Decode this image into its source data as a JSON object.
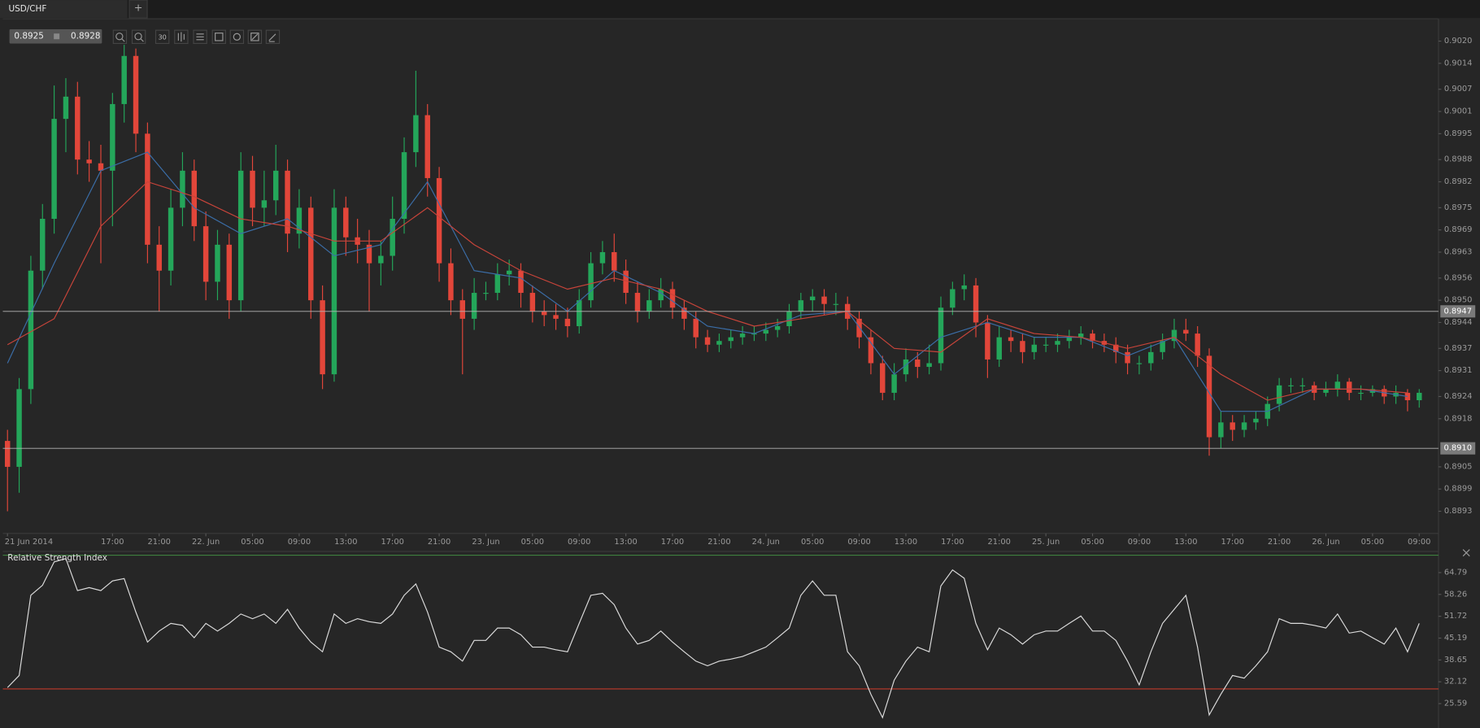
{
  "tabs": {
    "active": "USD/CHF",
    "add": "+"
  },
  "toolbar": {
    "bid": 0.8925,
    "ask": 0.8928,
    "timeframe": 30
  },
  "chart_data": [
    {
      "type": "candlestick",
      "up_color": "#24a65a",
      "down_color": "#e2463a",
      "xlim": [
        -0.4,
        122.65
      ],
      "ylim": [
        0.8887,
        0.9026
      ],
      "xticks": [
        {
          "value": 0,
          "label": "21 Jun 2014"
        },
        {
          "value": 9,
          "label": "17:00"
        },
        {
          "value": 13,
          "label": "21:00"
        },
        {
          "value": 17,
          "label": "22. Jun"
        },
        {
          "value": 21,
          "label": "05:00"
        },
        {
          "value": 25,
          "label": "09:00"
        },
        {
          "value": 29,
          "label": "13:00"
        },
        {
          "value": 33,
          "label": "17:00"
        },
        {
          "value": 37,
          "label": "21:00"
        },
        {
          "value": 41,
          "label": "23. Jun"
        },
        {
          "value": 45,
          "label": "05:00"
        },
        {
          "value": 49,
          "label": "09:00"
        },
        {
          "value": 53,
          "label": "13:00"
        },
        {
          "value": 57,
          "label": "17:00"
        },
        {
          "value": 61,
          "label": "21:00"
        },
        {
          "value": 65,
          "label": "24. Jun"
        },
        {
          "value": 69,
          "label": "05:00"
        },
        {
          "value": 73,
          "label": "09:00"
        },
        {
          "value": 77,
          "label": "13:00"
        },
        {
          "value": 81,
          "label": "17:00"
        },
        {
          "value": 85,
          "label": "21:00"
        },
        {
          "value": 89,
          "label": "25. Jun"
        },
        {
          "value": 93,
          "label": "05:00"
        },
        {
          "value": 97,
          "label": "09:00"
        },
        {
          "value": 101,
          "label": "13:00"
        },
        {
          "value": 105,
          "label": "17:00"
        },
        {
          "value": 109,
          "label": "21:00"
        },
        {
          "value": 113,
          "label": "26. Jun"
        },
        {
          "value": 117,
          "label": "05:00"
        },
        {
          "value": 121,
          "label": "09:00"
        }
      ],
      "yticks": [
        {
          "value": 0.902,
          "label": "0.9020"
        },
        0.9014,
        0.9007,
        0.9001,
        0.8995,
        0.8988,
        0.8982,
        0.8975,
        0.8969,
        0.8963,
        0.8956,
        {
          "value": 0.895,
          "label": "0.8950"
        },
        0.8944,
        0.8937,
        0.8931,
        0.8924,
        0.8918,
        0.8905,
        0.8899,
        0.8893
      ],
      "hlines": [
        0.8947,
        {
          "value": 0.891,
          "label": "0.8910"
        }
      ],
      "ohlc": [
        [
          0.8912,
          0.8915,
          0.8893,
          0.8905
        ],
        [
          0.8905,
          0.8929,
          0.8898,
          0.8926
        ],
        [
          0.8926,
          0.8962,
          0.8922,
          0.8958
        ],
        [
          0.8958,
          0.8976,
          0.8953,
          0.8972
        ],
        [
          0.8972,
          0.9008,
          0.8968,
          0.8999
        ],
        [
          0.8999,
          0.901,
          0.899,
          0.9005
        ],
        [
          0.9005,
          0.9009,
          0.8984,
          0.8988
        ],
        [
          0.8988,
          0.8993,
          0.8982,
          0.8987
        ],
        [
          0.8987,
          0.8992,
          0.896,
          0.8985
        ],
        [
          0.8985,
          0.9006,
          0.897,
          0.9003
        ],
        [
          0.9003,
          0.9019,
          0.8998,
          0.9016
        ],
        [
          0.9016,
          0.9018,
          0.899,
          0.8995
        ],
        [
          0.8995,
          0.8998,
          0.896,
          0.8965
        ],
        [
          0.8965,
          0.897,
          0.8947,
          0.8958
        ],
        [
          0.8958,
          0.898,
          0.8954,
          0.8975
        ],
        [
          0.8975,
          0.899,
          0.897,
          0.8985
        ],
        [
          0.8985,
          0.8988,
          0.8966,
          0.897
        ],
        [
          0.897,
          0.8974,
          0.895,
          0.8955
        ],
        [
          0.8955,
          0.8969,
          0.895,
          0.8965
        ],
        [
          0.8965,
          0.8968,
          0.8945,
          0.895
        ],
        [
          0.895,
          0.899,
          0.8947,
          0.8985
        ],
        [
          0.8985,
          0.8989,
          0.897,
          0.8975
        ],
        [
          0.8975,
          0.8985,
          0.897,
          0.8977
        ],
        [
          0.8977,
          0.8992,
          0.8973,
          0.8985
        ],
        [
          0.8985,
          0.8988,
          0.8963,
          0.8968
        ],
        [
          0.8968,
          0.898,
          0.8964,
          0.8975
        ],
        [
          0.8975,
          0.8978,
          0.8945,
          0.895
        ],
        [
          0.895,
          0.8954,
          0.8926,
          0.893
        ],
        [
          0.893,
          0.898,
          0.8928,
          0.8975
        ],
        [
          0.8975,
          0.8978,
          0.8962,
          0.8967
        ],
        [
          0.8967,
          0.8972,
          0.896,
          0.8965
        ],
        [
          0.8965,
          0.8969,
          0.8947,
          0.896
        ],
        [
          0.896,
          0.8966,
          0.8954,
          0.8962
        ],
        [
          0.8962,
          0.8978,
          0.8958,
          0.8972
        ],
        [
          0.8972,
          0.8994,
          0.8968,
          0.899
        ],
        [
          0.899,
          0.9012,
          0.8986,
          0.9
        ],
        [
          0.9,
          0.9003,
          0.8978,
          0.8983
        ],
        [
          0.8983,
          0.8986,
          0.8955,
          0.896
        ],
        [
          0.896,
          0.8964,
          0.8946,
          0.895
        ],
        [
          0.895,
          0.8953,
          0.893,
          0.8945
        ],
        [
          0.8945,
          0.8956,
          0.8942,
          0.8952
        ],
        [
          0.8952,
          0.8955,
          0.895,
          0.8952
        ],
        [
          0.8952,
          0.896,
          0.895,
          0.8957
        ],
        [
          0.8957,
          0.8961,
          0.8954,
          0.8958
        ],
        [
          0.8958,
          0.896,
          0.8948,
          0.8952
        ],
        [
          0.8952,
          0.8954,
          0.8944,
          0.8947
        ],
        [
          0.8947,
          0.895,
          0.8943,
          0.8946
        ],
        [
          0.8946,
          0.8949,
          0.8942,
          0.8945
        ],
        [
          0.8945,
          0.8948,
          0.894,
          0.8943
        ],
        [
          0.8943,
          0.8953,
          0.8941,
          0.895
        ],
        [
          0.895,
          0.8963,
          0.8948,
          0.896
        ],
        [
          0.896,
          0.8966,
          0.8957,
          0.8963
        ],
        [
          0.8963,
          0.8968,
          0.8955,
          0.8958
        ],
        [
          0.8958,
          0.8961,
          0.8949,
          0.8952
        ],
        [
          0.8952,
          0.8955,
          0.8944,
          0.8947
        ],
        [
          0.8947,
          0.8953,
          0.8945,
          0.895
        ],
        [
          0.895,
          0.8956,
          0.8948,
          0.8953
        ],
        [
          0.8953,
          0.8955,
          0.8945,
          0.8948
        ],
        [
          0.8948,
          0.895,
          0.8942,
          0.8945
        ],
        [
          0.8945,
          0.8947,
          0.8937,
          0.894
        ],
        [
          0.894,
          0.8942,
          0.8936,
          0.8938
        ],
        [
          0.8938,
          0.8941,
          0.8936,
          0.8939
        ],
        [
          0.8939,
          0.8942,
          0.8937,
          0.894
        ],
        [
          0.894,
          0.8943,
          0.8938,
          0.8941
        ],
        [
          0.8941,
          0.8943,
          0.8939,
          0.8941
        ],
        [
          0.8941,
          0.8944,
          0.8939,
          0.8942
        ],
        [
          0.8942,
          0.8945,
          0.894,
          0.8943
        ],
        [
          0.8943,
          0.8949,
          0.8941,
          0.8947
        ],
        [
          0.8947,
          0.8952,
          0.8945,
          0.895
        ],
        [
          0.895,
          0.8953,
          0.8947,
          0.8951
        ],
        [
          0.8951,
          0.8953,
          0.8946,
          0.8949
        ],
        [
          0.8949,
          0.8952,
          0.8946,
          0.8949
        ],
        [
          0.8949,
          0.8951,
          0.8942,
          0.8945
        ],
        [
          0.8945,
          0.8947,
          0.8937,
          0.894
        ],
        [
          0.894,
          0.8942,
          0.893,
          0.8933
        ],
        [
          0.8933,
          0.8935,
          0.8923,
          0.8925
        ],
        [
          0.8925,
          0.8933,
          0.8923,
          0.893
        ],
        [
          0.893,
          0.8937,
          0.8928,
          0.8934
        ],
        [
          0.8934,
          0.8936,
          0.8929,
          0.8932
        ],
        [
          0.8932,
          0.8938,
          0.893,
          0.8933
        ],
        [
          0.8933,
          0.8951,
          0.8931,
          0.8948
        ],
        [
          0.8948,
          0.8955,
          0.8946,
          0.8953
        ],
        [
          0.8953,
          0.8957,
          0.895,
          0.8954
        ],
        [
          0.8954,
          0.8956,
          0.894,
          0.8944
        ],
        [
          0.8944,
          0.8946,
          0.8929,
          0.8934
        ],
        [
          0.8934,
          0.8943,
          0.8932,
          0.894
        ],
        [
          0.894,
          0.8942,
          0.8936,
          0.8939
        ],
        [
          0.8939,
          0.8941,
          0.8933,
          0.8936
        ],
        [
          0.8936,
          0.894,
          0.8934,
          0.8938
        ],
        [
          0.8938,
          0.894,
          0.8936,
          0.8938
        ],
        [
          0.8938,
          0.8941,
          0.8936,
          0.8939
        ],
        [
          0.8939,
          0.8942,
          0.8937,
          0.894
        ],
        [
          0.894,
          0.8943,
          0.8938,
          0.8941
        ],
        [
          0.8941,
          0.8942,
          0.8937,
          0.8939
        ],
        [
          0.8939,
          0.8941,
          0.8936,
          0.8938
        ],
        [
          0.8938,
          0.894,
          0.8933,
          0.8936
        ],
        [
          0.8936,
          0.8938,
          0.893,
          0.8933
        ],
        [
          0.8933,
          0.8935,
          0.893,
          0.8933
        ],
        [
          0.8933,
          0.8938,
          0.8931,
          0.8936
        ],
        [
          0.8936,
          0.8941,
          0.8934,
          0.8939
        ],
        [
          0.8939,
          0.8945,
          0.8937,
          0.8942
        ],
        [
          0.8942,
          0.8945,
          0.8939,
          0.8941
        ],
        [
          0.8941,
          0.8943,
          0.8932,
          0.8935
        ],
        [
          0.8935,
          0.8937,
          0.8908,
          0.8913
        ],
        [
          0.8913,
          0.892,
          0.891,
          0.8917
        ],
        [
          0.8917,
          0.8919,
          0.8912,
          0.8915
        ],
        [
          0.8915,
          0.8919,
          0.8913,
          0.8917
        ],
        [
          0.8917,
          0.892,
          0.8915,
          0.8918
        ],
        [
          0.8918,
          0.8924,
          0.8916,
          0.8922
        ],
        [
          0.8922,
          0.8929,
          0.892,
          0.8927
        ],
        [
          0.8927,
          0.8929,
          0.8925,
          0.8927
        ],
        [
          0.8927,
          0.8929,
          0.8925,
          0.8927
        ],
        [
          0.8927,
          0.8928,
          0.8923,
          0.8925
        ],
        [
          0.8925,
          0.8928,
          0.8924,
          0.8926
        ],
        [
          0.8926,
          0.893,
          0.8924,
          0.8928
        ],
        [
          0.8928,
          0.8929,
          0.8923,
          0.8925
        ],
        [
          0.8925,
          0.8927,
          0.8923,
          0.8925
        ],
        [
          0.8925,
          0.8927,
          0.8924,
          0.8926
        ],
        [
          0.8926,
          0.8927,
          0.8922,
          0.8924
        ],
        [
          0.8924,
          0.8927,
          0.8922,
          0.8925
        ],
        [
          0.8925,
          0.8926,
          0.892,
          0.8923
        ],
        [
          0.8923,
          0.8926,
          0.8921,
          0.8925
        ]
      ],
      "series": [
        {
          "color": "#3b6ea8",
          "x": [
            0,
            4,
            8,
            12,
            16,
            20,
            24,
            28,
            32,
            36,
            40,
            44,
            48,
            52,
            56,
            60,
            64,
            68,
            72,
            76,
            80,
            84,
            88,
            92,
            96,
            100,
            104,
            108,
            112,
            116,
            120
          ],
          "values": [
            0.8933,
            0.896,
            0.8985,
            0.899,
            0.8975,
            0.8968,
            0.8972,
            0.8962,
            0.8965,
            0.8982,
            0.8958,
            0.8956,
            0.8947,
            0.8958,
            0.8952,
            0.8943,
            0.8941,
            0.8946,
            0.8947,
            0.893,
            0.894,
            0.8944,
            0.894,
            0.894,
            0.8935,
            0.894,
            0.892,
            0.892,
            0.8926,
            0.8926,
            0.8924
          ]
        },
        {
          "color": "#c8443a",
          "x": [
            0,
            4,
            8,
            12,
            16,
            20,
            24,
            28,
            32,
            36,
            40,
            44,
            48,
            52,
            56,
            60,
            64,
            68,
            72,
            76,
            80,
            84,
            88,
            92,
            96,
            100,
            104,
            108,
            112,
            116,
            120
          ],
          "values": [
            0.8938,
            0.8945,
            0.897,
            0.8982,
            0.8978,
            0.8972,
            0.897,
            0.8966,
            0.8966,
            0.8975,
            0.8965,
            0.8958,
            0.8953,
            0.8956,
            0.8953,
            0.8947,
            0.8943,
            0.8945,
            0.8947,
            0.8937,
            0.8936,
            0.8945,
            0.8941,
            0.894,
            0.8937,
            0.894,
            0.893,
            0.8923,
            0.8926,
            0.8926,
            0.8925
          ]
        }
      ]
    },
    {
      "type": "line",
      "title": "Relative Strength Index",
      "color": "#dcdcdc",
      "xlim": [
        -0.4,
        122.65
      ],
      "ylim": [
        20,
        70
      ],
      "yticks": [
        64.79,
        58.26,
        51.72,
        45.19,
        38.65,
        32.12,
        25.59
      ],
      "levels": [
        {
          "value": 70,
          "color": "#3f7f3f"
        },
        {
          "value": 30,
          "color": "#c0392b"
        }
      ],
      "values": [
        30.4,
        34,
        58,
        61,
        68,
        69,
        59.4,
        60.3,
        59.4,
        62.3,
        63,
        53,
        44,
        47.3,
        49.6,
        49,
        45.3,
        49.6,
        47.3,
        49.6,
        52.4,
        51,
        52.4,
        49.6,
        53.8,
        48.2,
        44,
        41.1,
        52.4,
        49.6,
        51,
        50.1,
        49.6,
        52.4,
        58,
        61.4,
        53,
        42.5,
        41.1,
        38.3,
        44.5,
        44.5,
        48.2,
        48.2,
        46.2,
        42.5,
        42.5,
        41.7,
        41.1,
        49.6,
        58,
        58.6,
        55.2,
        48.2,
        43.4,
        44.5,
        47.3,
        44,
        41.1,
        38.3,
        36.9,
        38.3,
        38.9,
        39.7,
        41.1,
        42.5,
        45.3,
        48.2,
        58,
        62.3,
        58,
        58,
        41.1,
        36.9,
        28.4,
        21.4,
        32.6,
        38.3,
        42.5,
        41.1,
        60.8,
        65.6,
        63.1,
        49.6,
        41.7,
        48.2,
        46.2,
        43.4,
        46.2,
        47.3,
        47.3,
        49.6,
        51.8,
        47.3,
        47.3,
        44.5,
        38.3,
        31.2,
        41.1,
        49.6,
        53.8,
        58,
        42.5,
        22.2,
        28.4,
        34,
        33.2,
        36.9,
        41.1,
        51,
        49.6,
        49.6,
        49,
        48.2,
        52.4,
        46.7,
        47.3,
        45.3,
        43.4,
        48.2,
        41.1,
        49.6
      ]
    }
  ]
}
